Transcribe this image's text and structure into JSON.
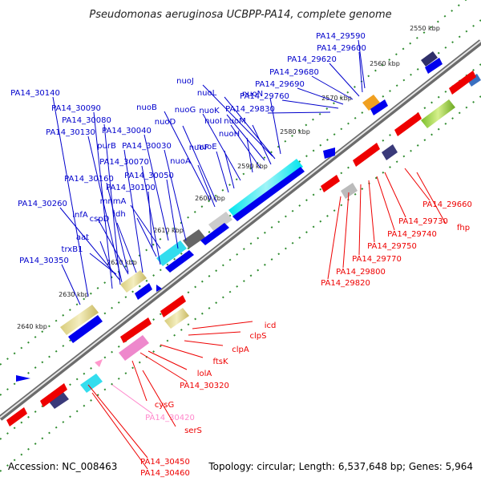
{
  "title": "Pseudomonas aeruginosa UCBPP-PA14, complete genome",
  "footer": {
    "accession": "Accession: NC_008463",
    "summary": "Topology: circular; Length: 6,537,648 bp; Genes: 5,964"
  },
  "colors": {
    "backbone": "#9a9a9a",
    "forward_gene": "#0000ee",
    "reverse_gene": "#ee0000",
    "pseudo_gene": "#ff99cc",
    "dots": "#2e8b2e"
  },
  "ticks": [
    "2550 kbp",
    "2560 kbp",
    "2570 kbp",
    "2580 kbp",
    "2590 kbp",
    "2600 kbp",
    "2610 kbp",
    "2620 kbp",
    "2630 kbp",
    "2640 kbp"
  ],
  "labels_forward": [
    "PA14_29590",
    "PA14_29600",
    "PA14_29620",
    "PA14_29680",
    "PA14_29690",
    "PA14_29760",
    "PA14_29830",
    "nuoJ",
    "nuoL",
    "nuoN",
    "nuoK",
    "nuoM",
    "nuoI",
    "nuoH",
    "nuoG",
    "nuoE",
    "nuoF",
    "nuoB",
    "nuoD",
    "nuoA",
    "PA14_30140",
    "PA14_30090",
    "PA14_30080",
    "PA14_30130",
    "PA14_30040",
    "PA14_30030",
    "purB",
    "PA14_30070",
    "PA14_30050",
    "PA14_30160",
    "PA14_30100",
    "mnmA",
    "idh",
    "cspD",
    "infA",
    "PA14_30260",
    "aat",
    "trxB1",
    "PA14_30350"
  ],
  "labels_reverse": [
    "PA14_29660",
    "fhp",
    "PA14_29730",
    "PA14_29740",
    "PA14_29750",
    "PA14_29770",
    "PA14_29800",
    "PA14_29820",
    "icd",
    "clpS",
    "clpA",
    "ftsK",
    "lolA",
    "PA14_30320",
    "cysG",
    "PA14_30420",
    "serS",
    "PA14_30450",
    "PA14_30460"
  ]
}
